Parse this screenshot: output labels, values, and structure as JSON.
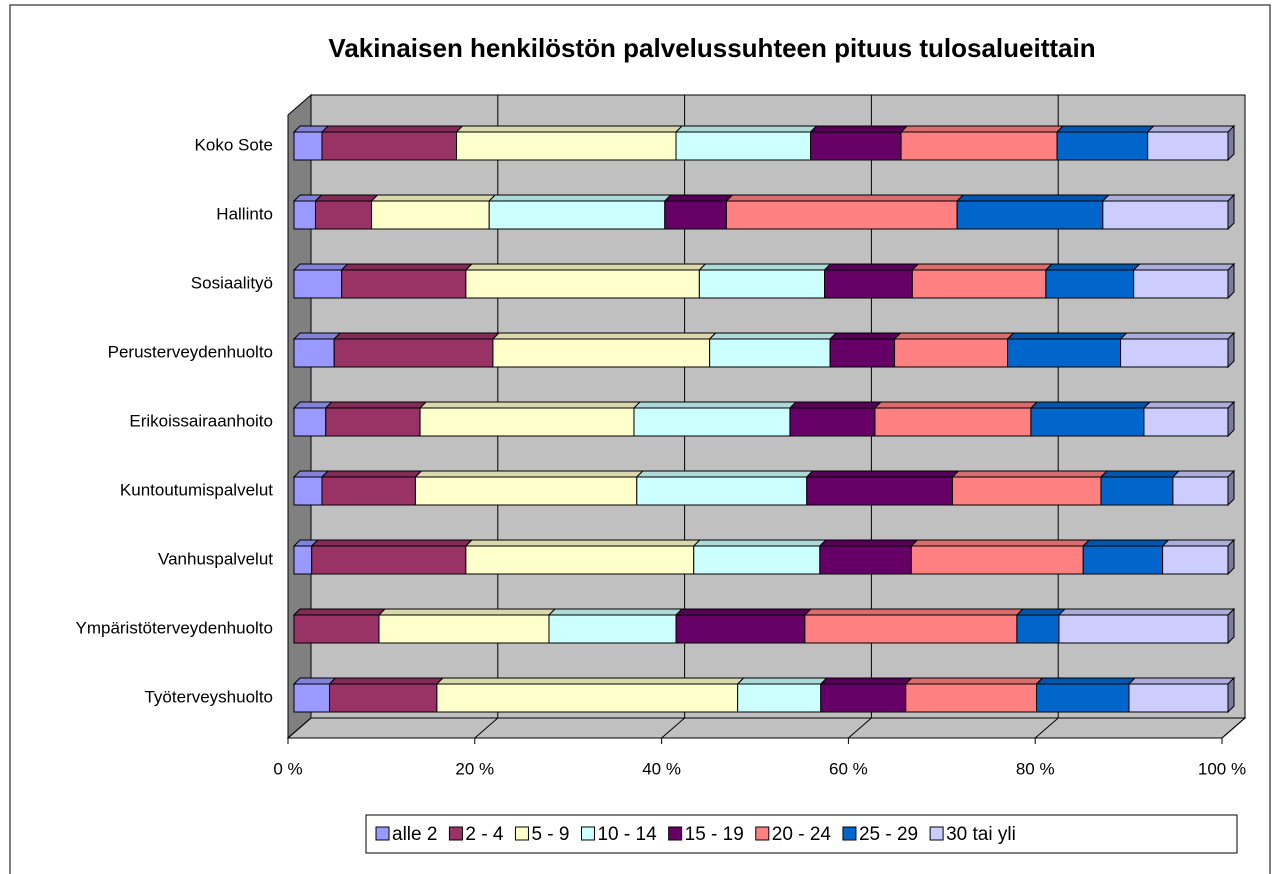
{
  "chart_data": {
    "type": "stacked_barh",
    "title": "Vakinaisen henkilöstön palvelussuhteen pituus tulosalueittain",
    "categories": [
      "Koko Sote",
      "Hallinto",
      "Sosiaalityö",
      "Perusterveydenhuolto",
      "Erikoissairaanhoito",
      "Kuntoutumispalvelut",
      "Vanhuspalvelut",
      "Ympäristöterveydenhuolto",
      "Työterveyshuolto"
    ],
    "series": [
      {
        "name": "alle 2",
        "color": "#9999ff",
        "values": [
          3.0,
          2.3,
          5.1,
          4.3,
          3.4,
          3.0,
          1.9,
          0,
          3.8
        ]
      },
      {
        "name": "2 - 4",
        "color": "#993366",
        "values": [
          14.4,
          6.0,
          13.3,
          17.0,
          10.1,
          10.0,
          16.5,
          9.1,
          11.5
        ]
      },
      {
        "name": "5 - 9",
        "color": "#ffffcc",
        "values": [
          23.5,
          12.6,
          25.0,
          23.2,
          22.9,
          23.7,
          24.4,
          18.2,
          32.2
        ]
      },
      {
        "name": "10 - 14",
        "color": "#ccffff",
        "values": [
          14.4,
          18.8,
          13.4,
          12.9,
          16.7,
          18.2,
          13.5,
          13.6,
          8.9
        ]
      },
      {
        "name": "15 - 19",
        "color": "#660066",
        "values": [
          9.7,
          6.6,
          9.4,
          6.9,
          9.1,
          15.6,
          9.8,
          13.8,
          9.1
        ]
      },
      {
        "name": "20 - 24",
        "color": "#ff8080",
        "values": [
          16.7,
          24.7,
          14.3,
          12.1,
          16.7,
          15.9,
          18.4,
          22.7,
          14.0
        ]
      },
      {
        "name": "25 - 29",
        "color": "#0066cc",
        "values": [
          9.7,
          15.6,
          9.4,
          12.1,
          12.1,
          7.7,
          8.5,
          4.5,
          9.9
        ]
      },
      {
        "name": "30 tai yli",
        "color": "#ccccff",
        "values": [
          8.6,
          13.4,
          10.1,
          11.5,
          9.0,
          5.9,
          7.0,
          18.1,
          10.6
        ]
      }
    ],
    "xlim": [
      0,
      100
    ],
    "xticks": [
      {
        "value": 0,
        "label": "0 %"
      },
      {
        "value": 20,
        "label": "20 %"
      },
      {
        "value": 40,
        "label": "40 %"
      },
      {
        "value": 60,
        "label": "60 %"
      },
      {
        "value": 80,
        "label": "80 %"
      },
      {
        "value": 100,
        "label": "100 %"
      }
    ],
    "grid": true,
    "legend": "bottom"
  }
}
